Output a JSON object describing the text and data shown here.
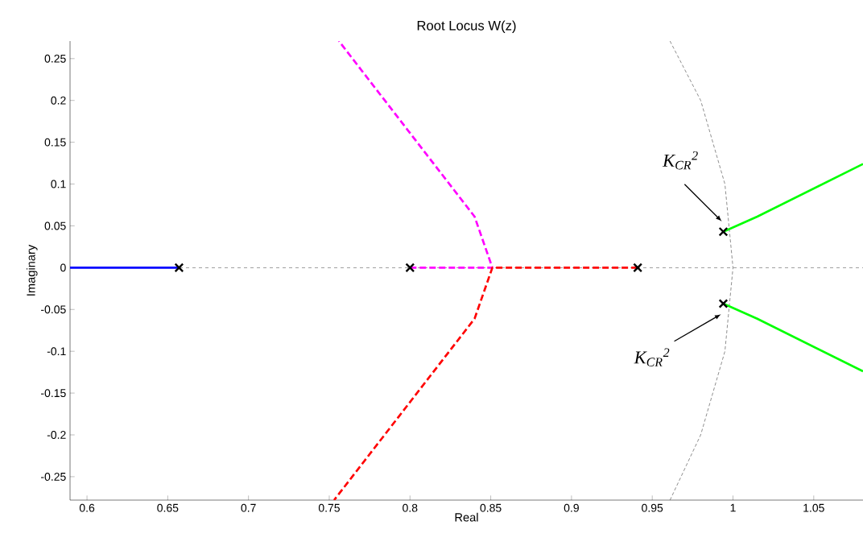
{
  "chart_data": {
    "type": "line",
    "title": "Root Locus W(z)",
    "xlabel": "Real",
    "ylabel": "Imaginary",
    "xlim": [
      0.5895,
      1.0805
    ],
    "ylim": [
      -0.278,
      0.271
    ],
    "xticks": [
      0.6,
      0.65,
      0.7,
      0.75,
      0.8,
      0.85,
      0.9,
      0.95,
      1,
      1.05
    ],
    "yticks": [
      -0.25,
      -0.2,
      -0.15,
      -0.1,
      -0.05,
      0,
      0.05,
      0.1,
      0.15,
      0.2,
      0.25
    ],
    "grid": false,
    "ref_lines": [
      {
        "axis": "y",
        "value": 0,
        "color": "#555555",
        "line_style": "dashed"
      }
    ],
    "series": [
      {
        "color": "#555555",
        "line_style": "dashed",
        "x": [
          0.961,
          0.98,
          0.995,
          1.0,
          0.995,
          0.98,
          0.961
        ],
        "values": [
          0.271,
          0.2,
          0.1,
          0,
          -0.1,
          -0.2,
          -0.278
        ]
      },
      {
        "color": "#0000ff",
        "line_style": "solid",
        "x": [
          0.5895,
          0.657
        ],
        "values": [
          0,
          0
        ]
      },
      {
        "color": "#ff00ff",
        "line_style": "dashed",
        "x": [
          0.8,
          0.851,
          0.84,
          0.756
        ],
        "values": [
          0,
          0,
          0.061,
          0.271
        ]
      },
      {
        "color": "#ff0000",
        "line_style": "dashed",
        "x": [
          0.941,
          0.851,
          0.84,
          0.753
        ],
        "values": [
          0,
          0,
          -0.061,
          -0.278
        ]
      },
      {
        "color": "#00ff00",
        "line_style": "solid",
        "x": [
          0.994,
          1.015,
          1.0805
        ],
        "values": [
          0.043,
          0.061,
          0.124
        ]
      },
      {
        "color": "#00ff00",
        "line_style": "solid",
        "x": [
          0.994,
          1.015,
          1.0805
        ],
        "values": [
          -0.043,
          -0.061,
          -0.124
        ]
      },
      {
        "type": "scatter",
        "color": "#000000",
        "marker": "cross",
        "x": [
          0.657,
          0.8,
          0.941,
          0.994,
          0.994
        ],
        "values": [
          0,
          0,
          0,
          0.043,
          -0.043
        ]
      }
    ],
    "annotations": [
      "K$_{CR}$$^{2}$",
      "K$_{CR}$$^{2}$"
    ]
  }
}
